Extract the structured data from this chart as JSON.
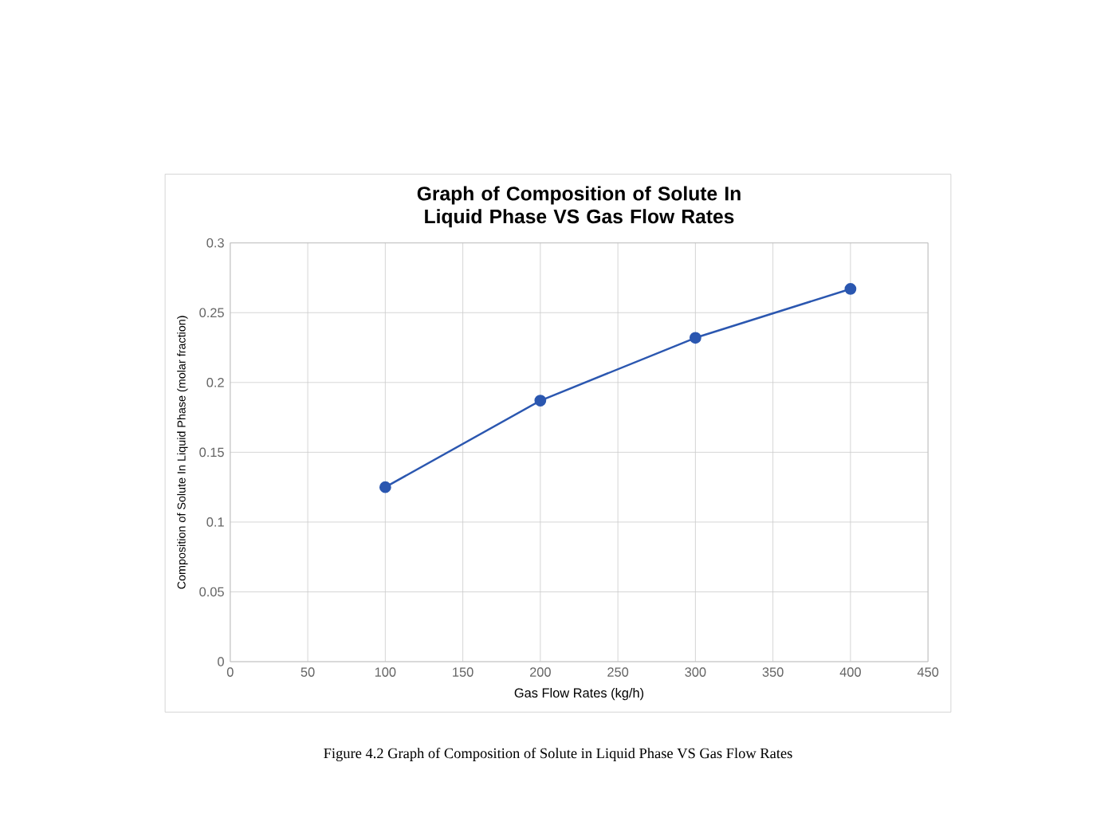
{
  "chart_data": {
    "type": "line",
    "title": "Graph of Composition of Solute In Liquid Phase VS Gas Flow Rates",
    "xlabel": "Gas Flow Rates (kg/h)",
    "ylabel": "Composition of Solute In Liquid Phase (molar fraction)",
    "annotations": [
      "Figure 4.2 Graph of Composition of Solute in Liquid Phase VS Gas Flow Rates"
    ],
    "x": [
      100,
      200,
      300,
      400
    ],
    "series": [
      {
        "color": "#2b57b0",
        "values": [
          0.125,
          0.187,
          0.232,
          0.267
        ]
      }
    ],
    "xlim": [
      0,
      450
    ],
    "xticks": [
      0,
      50,
      100,
      150,
      200,
      250,
      300,
      350,
      400,
      450
    ],
    "ylim": [
      0,
      0.3
    ],
    "yticks": [
      0,
      0.05,
      0.1,
      0.15,
      0.2,
      0.25,
      0.3
    ],
    "grid": true,
    "marker": "circle",
    "line_style": "solid"
  }
}
